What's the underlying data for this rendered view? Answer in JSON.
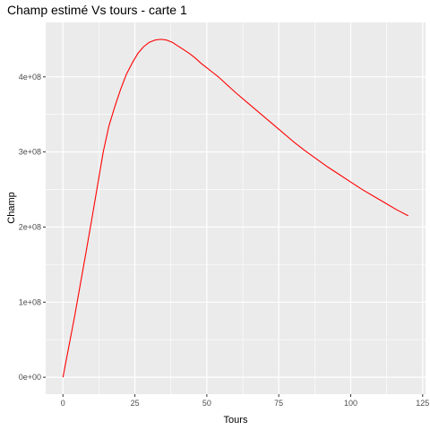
{
  "chart_data": {
    "type": "line",
    "title": "Champ estimé Vs tours - carte 1",
    "xlabel": "Tours",
    "ylabel": "Champ",
    "xlim": [
      -6,
      126
    ],
    "ylim": [
      -22500000,
      472500000
    ],
    "x_ticks": [
      0,
      25,
      50,
      75,
      100,
      125
    ],
    "x_tick_labels": [
      "0",
      "25",
      "50",
      "75",
      "100",
      "125"
    ],
    "y_ticks": [
      0,
      100000000,
      200000000,
      300000000,
      400000000
    ],
    "y_tick_labels": [
      "0e+00",
      "1e+08",
      "2e+08",
      "3e+08",
      "4e+08"
    ],
    "grid": true,
    "background": "#EBEBEB",
    "line_color": "#FF0000",
    "series": [
      {
        "x": [
          0,
          2,
          4,
          6,
          8,
          10,
          12,
          14,
          16,
          18,
          20,
          22,
          24,
          26,
          28,
          30,
          32,
          34,
          36,
          38,
          40,
          42,
          44,
          46,
          48,
          50,
          52,
          54,
          56,
          58,
          60,
          64,
          68,
          72,
          76,
          80,
          84,
          88,
          92,
          96,
          100,
          104,
          108,
          112,
          116,
          120
        ],
        "y": [
          0,
          40000000,
          80000000,
          123000000,
          166000000,
          210000000,
          255000000,
          300000000,
          335000000,
          360000000,
          383000000,
          403000000,
          418000000,
          431000000,
          440000000,
          446000000,
          449000000,
          450000000,
          449000000,
          446000000,
          441000000,
          436000000,
          431000000,
          425000000,
          418000000,
          412000000,
          406000000,
          400000000,
          393000000,
          386000000,
          379000000,
          366000000,
          353000000,
          340000000,
          327000000,
          314000000,
          302000000,
          291000000,
          280000000,
          270000000,
          260000000,
          250000000,
          241000000,
          232000000,
          223000000,
          215000000
        ]
      }
    ]
  }
}
